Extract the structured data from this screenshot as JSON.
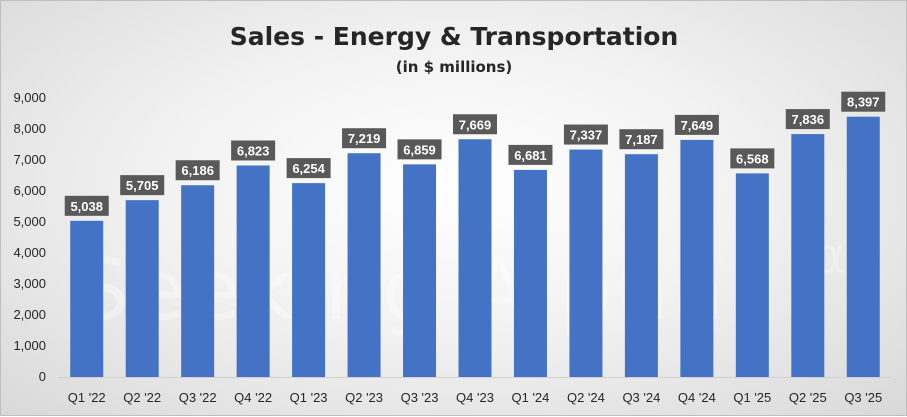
{
  "watermark": "Seeking Alpha",
  "watermark_logo": "α",
  "colors": {
    "bar": "#4472c4",
    "label_bg": "#595959",
    "label_text": "#ffffff",
    "axis_text": "#262626"
  },
  "chart_data": {
    "type": "bar",
    "title": "Sales - Energy & Transportation",
    "subtitle": "(in $ millions)",
    "categories": [
      "Q1 '22",
      "Q2 '22",
      "Q3 '22",
      "Q4 '22",
      "Q1 '23",
      "Q2 '23",
      "Q3 '23",
      "Q4 '23",
      "Q1 '24",
      "Q2 '24",
      "Q3 '24",
      "Q4 '24",
      "Q1 '25",
      "Q2 '25",
      "Q3 '25"
    ],
    "values": [
      5038,
      5705,
      6186,
      6823,
      6254,
      7219,
      6859,
      7669,
      6681,
      7337,
      7187,
      7649,
      6568,
      7836,
      8397
    ],
    "value_labels": [
      "5,038",
      "5,705",
      "6,186",
      "6,823",
      "6,254",
      "7,219",
      "6,859",
      "7,669",
      "6,681",
      "7,337",
      "7,187",
      "7,649",
      "6,568",
      "7,836",
      "8,397"
    ],
    "ylim": [
      0,
      9000
    ],
    "yticks": [
      0,
      1000,
      2000,
      3000,
      4000,
      5000,
      6000,
      7000,
      8000,
      9000
    ],
    "ytick_labels": [
      "0",
      "1,000",
      "2,000",
      "3,000",
      "4,000",
      "5,000",
      "6,000",
      "7,000",
      "8,000",
      "9,000"
    ],
    "grid": false,
    "legend": "none",
    "xlabel": "",
    "ylabel": ""
  }
}
